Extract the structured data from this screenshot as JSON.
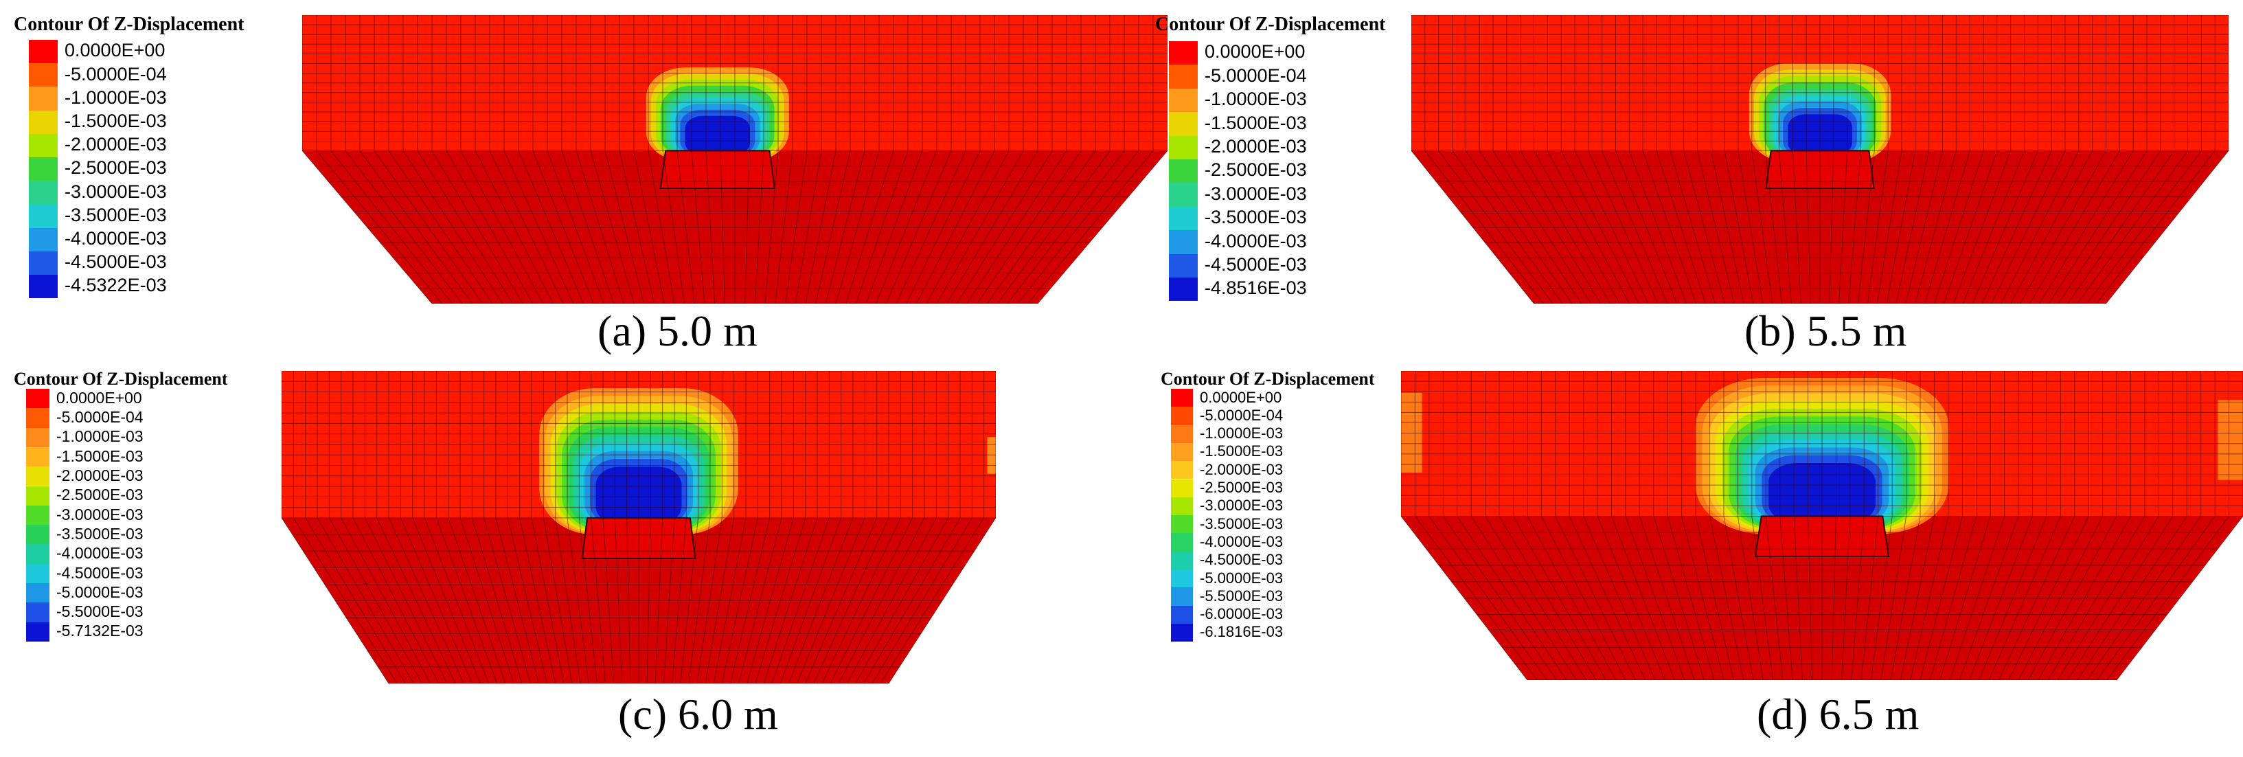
{
  "panels": [
    {
      "legend_title": "Contour Of Z-Displacement",
      "caption": "(a) 5.0 m",
      "legend": [
        {
          "label": "0.0000E+00",
          "color": "#ff0000"
        },
        {
          "label": "-5.0000E-04",
          "color": "#ff5a00"
        },
        {
          "label": "-1.0000E-03",
          "color": "#ff9a1a"
        },
        {
          "label": "-1.5000E-03",
          "color": "#e8d400"
        },
        {
          "label": "-2.0000E-03",
          "color": "#a6e600"
        },
        {
          "label": "-2.5000E-03",
          "color": "#3cd43c"
        },
        {
          "label": "-3.0000E-03",
          "color": "#2ad28c"
        },
        {
          "label": "-3.5000E-03",
          "color": "#1ecdd2"
        },
        {
          "label": "-4.0000E-03",
          "color": "#1e9ae6"
        },
        {
          "label": "-4.5000E-03",
          "color": "#1e5ae6"
        },
        {
          "label": "-4.5322E-03",
          "color": "#0a14d2"
        }
      ]
    },
    {
      "legend_title": "Contour Of Z-Displacement",
      "caption": "(b) 5.5 m",
      "legend": [
        {
          "label": "0.0000E+00",
          "color": "#ff0000"
        },
        {
          "label": "-5.0000E-04",
          "color": "#ff5a00"
        },
        {
          "label": "-1.0000E-03",
          "color": "#ff9a1a"
        },
        {
          "label": "-1.5000E-03",
          "color": "#e8d400"
        },
        {
          "label": "-2.0000E-03",
          "color": "#a6e600"
        },
        {
          "label": "-2.5000E-03",
          "color": "#3cd43c"
        },
        {
          "label": "-3.0000E-03",
          "color": "#2ad28c"
        },
        {
          "label": "-3.5000E-03",
          "color": "#1ecdd2"
        },
        {
          "label": "-4.0000E-03",
          "color": "#1e9ae6"
        },
        {
          "label": "-4.5000E-03",
          "color": "#1e5ae6"
        },
        {
          "label": "-4.8516E-03",
          "color": "#0a14d2"
        }
      ]
    },
    {
      "legend_title": "Contour Of Z-Displacement",
      "caption": "(c) 6.0 m",
      "legend": [
        {
          "label": "0.0000E+00",
          "color": "#ff0000"
        },
        {
          "label": "-5.0000E-04",
          "color": "#ff5a00"
        },
        {
          "label": "-1.0000E-03",
          "color": "#ff8c1a"
        },
        {
          "label": "-1.5000E-03",
          "color": "#ffb41e"
        },
        {
          "label": "-2.0000E-03",
          "color": "#e8e000"
        },
        {
          "label": "-2.5000E-03",
          "color": "#a6e600"
        },
        {
          "label": "-3.0000E-03",
          "color": "#50dc28"
        },
        {
          "label": "-3.5000E-03",
          "color": "#28d25a"
        },
        {
          "label": "-4.0000E-03",
          "color": "#1ecda0"
        },
        {
          "label": "-4.5000E-03",
          "color": "#1ec8dc"
        },
        {
          "label": "-5.0000E-03",
          "color": "#1e96e6"
        },
        {
          "label": "-5.5000E-03",
          "color": "#1e50e6"
        },
        {
          "label": "-5.7132E-03",
          "color": "#0a14d2"
        }
      ]
    },
    {
      "legend_title": "Contour Of Z-Displacement",
      "caption": "(d) 6.5 m",
      "legend": [
        {
          "label": "0.0000E+00",
          "color": "#ff0000"
        },
        {
          "label": "-5.0000E-04",
          "color": "#ff4a00"
        },
        {
          "label": "-1.0000E-03",
          "color": "#ff7a14"
        },
        {
          "label": "-1.5000E-03",
          "color": "#ffa01e"
        },
        {
          "label": "-2.0000E-03",
          "color": "#ffc81e"
        },
        {
          "label": "-2.5000E-03",
          "color": "#e8e600"
        },
        {
          "label": "-3.0000E-03",
          "color": "#a6e600"
        },
        {
          "label": "-3.5000E-03",
          "color": "#50dc28"
        },
        {
          "label": "-4.0000E-03",
          "color": "#28d264"
        },
        {
          "label": "-4.5000E-03",
          "color": "#1ecdaa"
        },
        {
          "label": "-5.0000E-03",
          "color": "#1ec8e1"
        },
        {
          "label": "-5.5000E-03",
          "color": "#1e96e6"
        },
        {
          "label": "-6.0000E-03",
          "color": "#1e50e6"
        },
        {
          "label": "-6.1816E-03",
          "color": "#0a14d2"
        }
      ]
    }
  ],
  "colors": {
    "block_face": "#ff1a00",
    "block_dark": "#d20000",
    "grid": "#3a0000"
  }
}
